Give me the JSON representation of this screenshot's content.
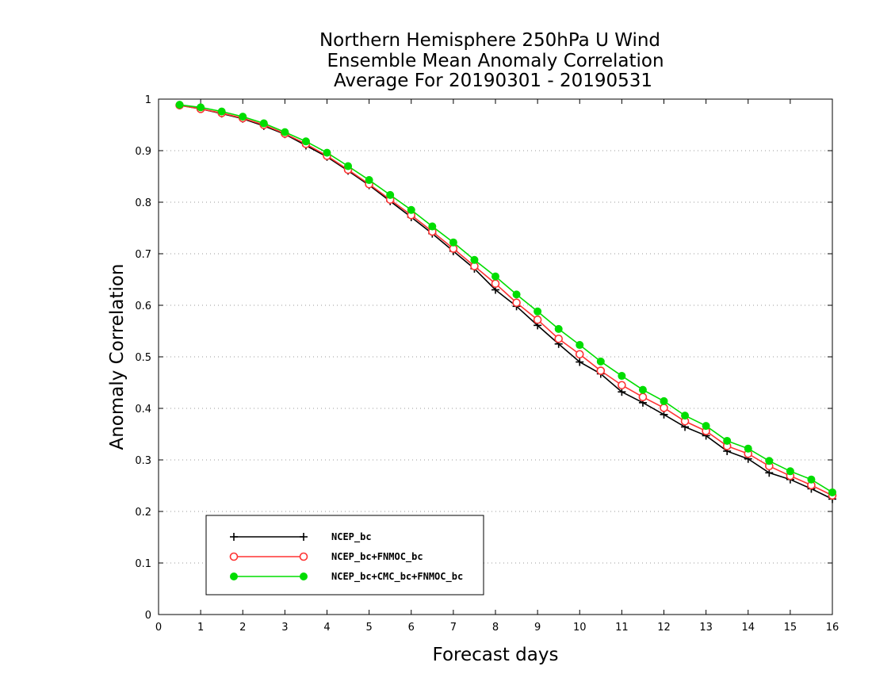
{
  "chart_data": {
    "type": "line",
    "title_lines": [
      "Northern Hemisphere 250hPa U Wind",
      "Ensemble Mean Anomaly Correlation",
      "Average For 20190301 - 20190531"
    ],
    "xlabel": "Forecast days",
    "ylabel": "Anomaly Correlation",
    "xlim": [
      0,
      16
    ],
    "ylim": [
      0,
      1
    ],
    "xticks": [
      0,
      1,
      2,
      3,
      4,
      5,
      6,
      7,
      8,
      9,
      10,
      11,
      12,
      13,
      14,
      15,
      16
    ],
    "yticks": [
      0,
      0.1,
      0.2,
      0.3,
      0.4,
      0.5,
      0.6,
      0.7,
      0.8,
      0.9,
      1
    ],
    "grid": "horizontal-dotted",
    "legend_position": "lower-left",
    "x": [
      0.5,
      1,
      1.5,
      2,
      2.5,
      3,
      3.5,
      4,
      4.5,
      5,
      5.5,
      6,
      6.5,
      7,
      7.5,
      8,
      8.5,
      9,
      9.5,
      10,
      10.5,
      11,
      11.5,
      12,
      12.5,
      13,
      13.5,
      14,
      14.5,
      15,
      15.5,
      16
    ],
    "series": [
      {
        "name": "NCEP_bc",
        "color": "#000000",
        "marker": "plus",
        "values": [
          0.988,
          0.981,
          0.972,
          0.962,
          0.948,
          0.932,
          0.91,
          0.888,
          0.861,
          0.833,
          0.802,
          0.771,
          0.739,
          0.705,
          0.671,
          0.63,
          0.598,
          0.561,
          0.525,
          0.49,
          0.467,
          0.432,
          0.411,
          0.388,
          0.364,
          0.347,
          0.317,
          0.302,
          0.275,
          0.262,
          0.244,
          0.224
        ]
      },
      {
        "name": "NCEP_bc+FNMOC_bc",
        "color": "#ff3333",
        "marker": "open-circle",
        "values": [
          0.988,
          0.981,
          0.973,
          0.963,
          0.95,
          0.933,
          0.913,
          0.89,
          0.863,
          0.835,
          0.805,
          0.775,
          0.743,
          0.71,
          0.676,
          0.642,
          0.605,
          0.572,
          0.535,
          0.505,
          0.473,
          0.445,
          0.422,
          0.401,
          0.375,
          0.356,
          0.327,
          0.312,
          0.288,
          0.269,
          0.251,
          0.231
        ]
      },
      {
        "name": "NCEP_bc+CMC_bc+FNMOC_bc",
        "color": "#00dd00",
        "marker": "filled-circle",
        "values": [
          0.989,
          0.984,
          0.976,
          0.966,
          0.953,
          0.936,
          0.918,
          0.896,
          0.87,
          0.843,
          0.814,
          0.785,
          0.753,
          0.722,
          0.688,
          0.656,
          0.621,
          0.588,
          0.554,
          0.523,
          0.491,
          0.463,
          0.436,
          0.414,
          0.386,
          0.366,
          0.337,
          0.322,
          0.298,
          0.278,
          0.262,
          0.237
        ]
      }
    ]
  }
}
